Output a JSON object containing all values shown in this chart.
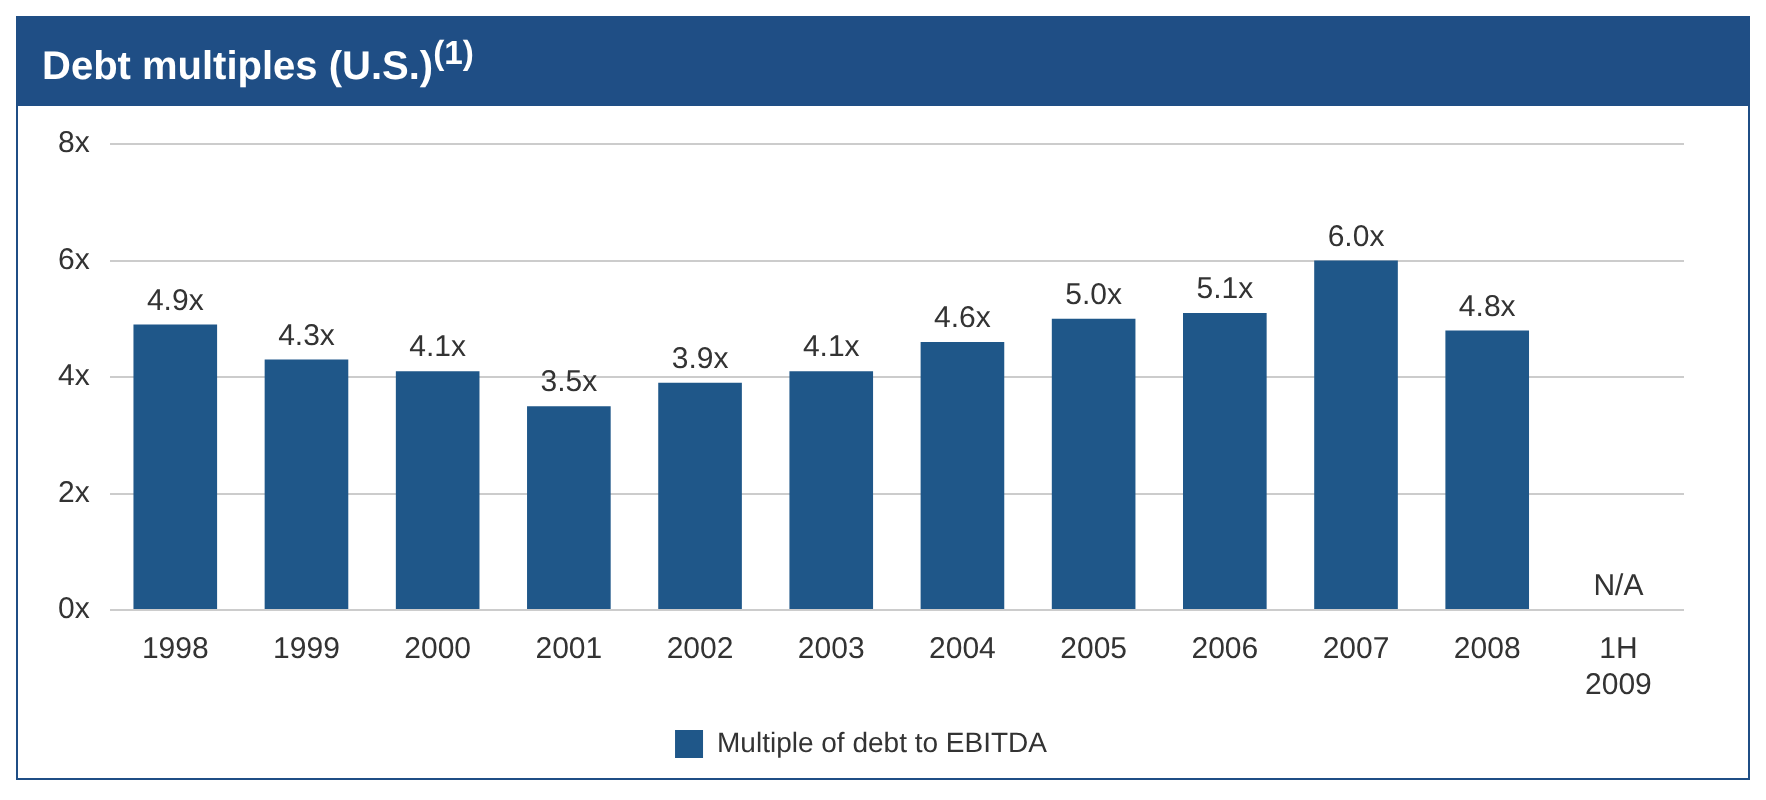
{
  "chart_data": {
    "type": "bar",
    "title": "Debt multiples (U.S.)$^{(1)}$",
    "categories": [
      "1998",
      "1999",
      "2000",
      "2001",
      "2002",
      "2003",
      "2004",
      "2005",
      "2006",
      "2007",
      "2008",
      "1H 2009"
    ],
    "series": [
      {
        "name": "Multiple of debt to EBITDA",
        "color": "#1f5789",
        "values": [
          4.9,
          4.3,
          4.1,
          3.5,
          3.9,
          4.1,
          4.6,
          5.0,
          5.1,
          6.0,
          4.8,
          null
        ],
        "value_labels": [
          "4.9x",
          "4.3x",
          "4.1x",
          "3.5x",
          "3.9x",
          "4.1x",
          "4.6x",
          "5.0x",
          "5.1x",
          "6.0x",
          "4.8x",
          "N/A"
        ]
      }
    ],
    "ylim": [
      0,
      8
    ],
    "yticks": [
      {
        "value": 0,
        "label": "0x"
      },
      {
        "value": 2,
        "label": "2x"
      },
      {
        "value": 4,
        "label": "4x"
      },
      {
        "value": 6,
        "label": "6x"
      },
      {
        "value": 8,
        "label": "8x"
      }
    ],
    "grid": "y",
    "legend": "bottom"
  }
}
